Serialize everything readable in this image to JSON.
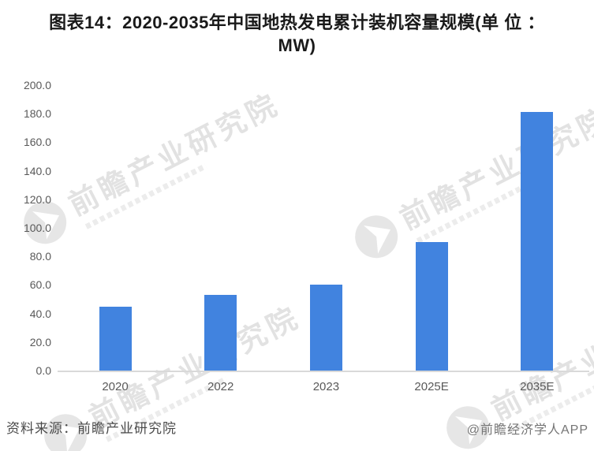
{
  "header": {
    "title_lines": [
      "图表14：2020-2035年中国地热发电累计装机容量规模(单 位 ：",
      "MW)"
    ]
  },
  "chart_data": {
    "type": "bar",
    "title": "图表14：2020-2035年中国地热发电累计装机容量规模(单位：MW)",
    "categories": [
      "2020",
      "2022",
      "2023",
      "2025E",
      "2035E"
    ],
    "values": [
      45,
      53,
      60,
      90,
      181
    ],
    "unit": "MW",
    "xlabel": "",
    "ylabel": "",
    "ylim": [
      0,
      200
    ],
    "ytick_step": 20,
    "yticks": [
      "200.0",
      "180.0",
      "160.0",
      "140.0",
      "120.0",
      "100.0",
      "80.0",
      "60.0",
      "40.0",
      "20.0",
      "0.0"
    ],
    "grid": false,
    "legend_position": "none",
    "bar_color": "#4183df"
  },
  "watermark": {
    "text": "前瞻产业研究院"
  },
  "footer": {
    "source": "资料来源：前瞻产业研究院",
    "credit": "@前瞻经济学人APP"
  },
  "colors": {
    "background": "#ffffff",
    "bar": "#4183df",
    "axis_line": "#d9d9d9",
    "tick_text": "#595959",
    "title_text": "#1a1a1a",
    "source_text": "#4a4a4a",
    "credit_text": "#757575",
    "watermark": "#cfcfcf"
  }
}
